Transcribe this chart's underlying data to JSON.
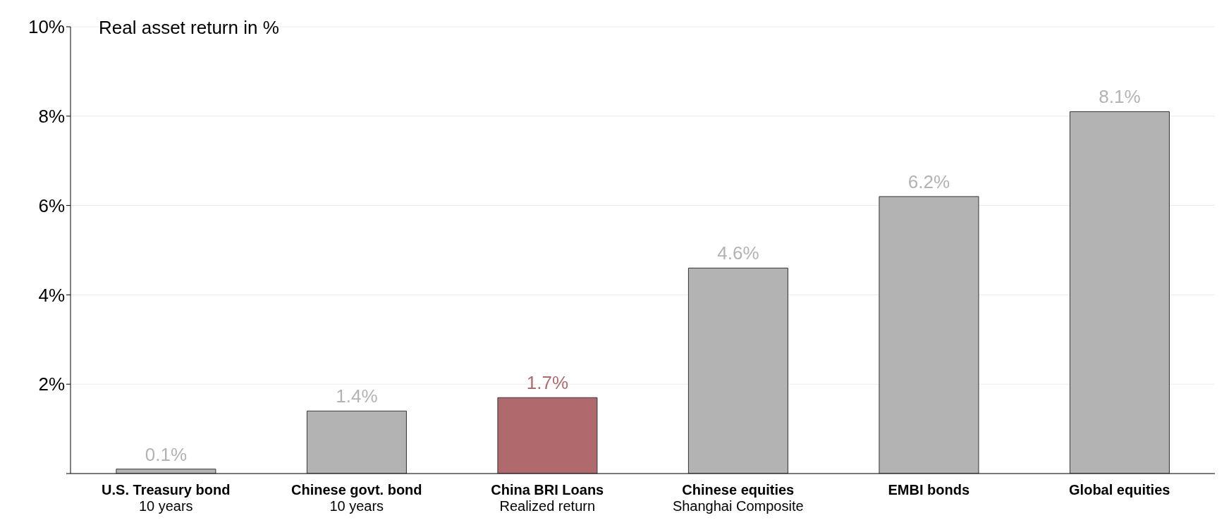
{
  "chart_data": {
    "type": "bar",
    "ylabel": "Real asset return in %",
    "categories": [
      "U.S. Treasury bond\n10 years",
      "Chinese govt. bond\n10 years",
      "China BRI Loans\nRealized return",
      "Chinese equities\nShanghai Composite",
      "EMBI bonds",
      "Global equities"
    ],
    "values": [
      0.1,
      1.4,
      1.7,
      4.6,
      6.2,
      8.1
    ],
    "value_labels": [
      "0.1%",
      "1.4%",
      "1.7%",
      "4.6%",
      "6.2%",
      "8.1%"
    ],
    "colors": [
      "#b3b3b3",
      "#b3b3b3",
      "#b06a6e",
      "#b3b3b3",
      "#b3b3b3",
      "#b3b3b3"
    ],
    "ylim": [
      0,
      10
    ],
    "yticks": [
      {
        "value": 0,
        "label": null
      },
      {
        "value": 2,
        "label": "2%"
      },
      {
        "value": 4,
        "label": "4%"
      },
      {
        "value": 6,
        "label": "6%"
      },
      {
        "value": 8,
        "label": "8%"
      },
      {
        "value": 10,
        "label": "10%"
      }
    ],
    "grid": "y"
  }
}
